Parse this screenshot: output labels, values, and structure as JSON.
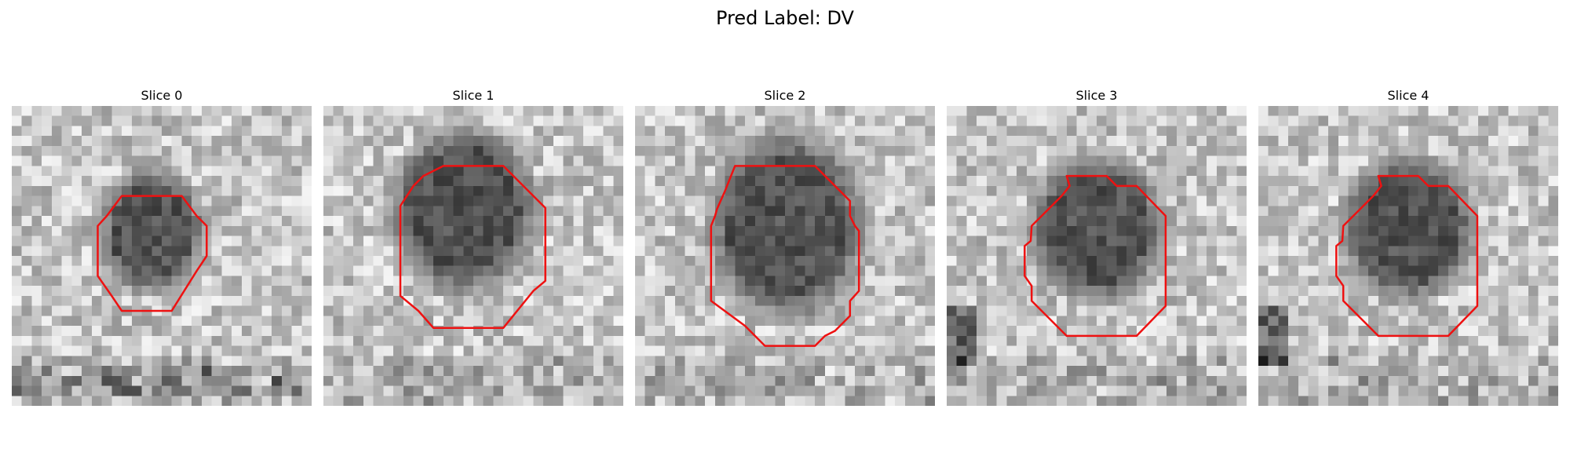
{
  "figure": {
    "title": "Pred Label: DV"
  },
  "panels": [
    {
      "title": "Slice 0"
    },
    {
      "title": "Slice 1"
    },
    {
      "title": "Slice 2"
    },
    {
      "title": "Slice 3"
    },
    {
      "title": "Slice 4"
    }
  ],
  "colors": {
    "contour": "#ee1111",
    "background": "#ffffff",
    "colormap": "grayscale"
  }
}
